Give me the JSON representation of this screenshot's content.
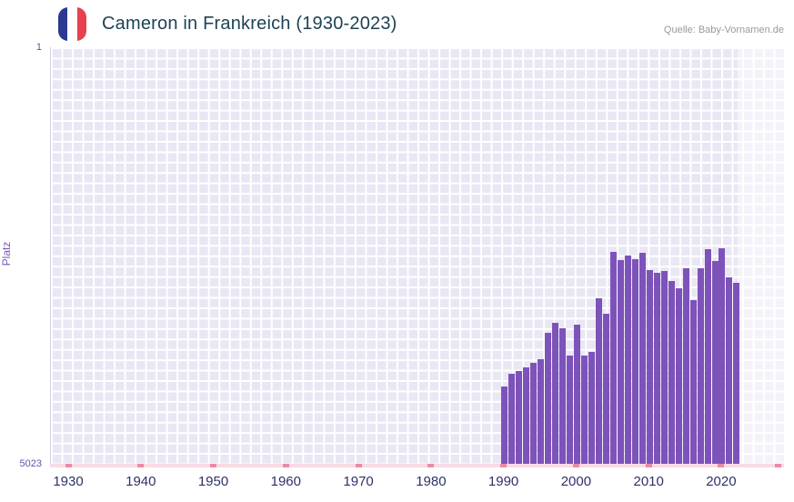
{
  "header": {
    "title": "Cameron in Frankreich (1930-2023)",
    "source": "Quelle: Baby-Vornamen.de"
  },
  "flag_icon": {
    "name": "flag-of-france",
    "colors": {
      "blue": "#2b3990",
      "white": "#ffffff",
      "red": "#e8414e"
    }
  },
  "chart_data": {
    "type": "bar",
    "title": "Cameron in Frankreich (1930-2023)",
    "ylabel": "Platz",
    "xlabel": "",
    "y_axis": {
      "top_tick": "1",
      "bottom_tick": "5023",
      "min": 1,
      "max": 5023,
      "inverted": true
    },
    "x_axis": {
      "ticks": [
        1930,
        1940,
        1950,
        1960,
        1970,
        1980,
        1990,
        2000,
        2010,
        2020
      ]
    },
    "legend": "none",
    "grid": true,
    "bar_color": "#7d53ba",
    "plot_background": "#eae7f4",
    "no_data_strip_color": "#f8dbe5",
    "axis_mark_color": "#ea8ba2",
    "categories": [
      1990,
      1991,
      1992,
      1993,
      1994,
      1995,
      1996,
      1997,
      1998,
      1999,
      2000,
      2001,
      2002,
      2003,
      2004,
      2005,
      2006,
      2007,
      2008,
      2009,
      2010,
      2011,
      2012,
      2013,
      2014,
      2015,
      2016,
      2017,
      2018,
      2019,
      2020,
      2021,
      2022
    ],
    "values": [
      4090,
      3940,
      3900,
      3860,
      3810,
      3760,
      3440,
      3320,
      3390,
      3720,
      3350,
      3720,
      3670,
      3030,
      3210,
      2470,
      2570,
      2510,
      2560,
      2480,
      2690,
      2720,
      2700,
      2820,
      2910,
      2670,
      3050,
      2660,
      2440,
      2580,
      2420,
      2770,
      2840
    ]
  }
}
